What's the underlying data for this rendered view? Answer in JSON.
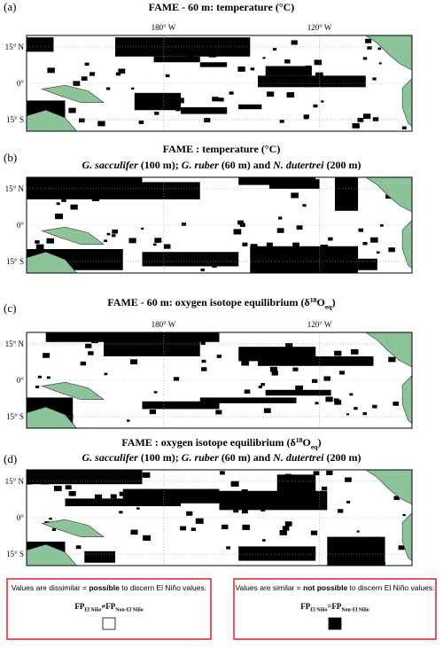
{
  "panels": [
    {
      "label": "(a)",
      "title": [
        "FAME - 60 m:  temperature (°C)"
      ],
      "lon_labels": [
        "180° W",
        "120° W"
      ],
      "lat_labels": [
        "15° N",
        "0°",
        "15° S"
      ]
    },
    {
      "label": "(b)",
      "title": [
        "FAME :  temperature (°C)"
      ],
      "subtitle": [
        "G. sacculifer",
        " (100 m); ",
        "G. ruber",
        " (60  m) and ",
        "N. dutertrei",
        " (200 m)"
      ],
      "lat_labels": [
        "15° N",
        "0°",
        "15° S"
      ]
    },
    {
      "label": "(c)",
      "title": [
        "FAME - 60 m:  oxygen isotope equilibrium (δ",
        "18",
        "O",
        "eq",
        ")"
      ],
      "lon_labels": [
        "180° W",
        "120° W"
      ],
      "lat_labels": [
        "15° N",
        "0°",
        "15° S"
      ]
    },
    {
      "label": "(d)",
      "title": [
        "FAME :  oxygen isotope equilibrium (δ",
        "18",
        "O",
        "eq",
        ")"
      ],
      "subtitle": [
        "G. sacculifer",
        " (100 m); ",
        "G. ruber",
        " (60  m) and ",
        "N. dutertrei",
        " (200 m)"
      ],
      "lat_labels": [
        "15° N",
        "0°",
        "15° S"
      ]
    }
  ],
  "legend": [
    {
      "text": [
        "Values are dissimilar = ",
        "possible",
        " to discern El Niño values:"
      ],
      "formula": [
        "FP",
        "El Niño",
        "≠",
        "FP",
        "Non-El Niño"
      ]
    },
    {
      "text": [
        "Values are similar = ",
        "not possible",
        " to discern El Niño values:"
      ],
      "formula": [
        "FP",
        "El Niño",
        "=",
        "FP",
        "Non-El Niño"
      ]
    }
  ]
}
